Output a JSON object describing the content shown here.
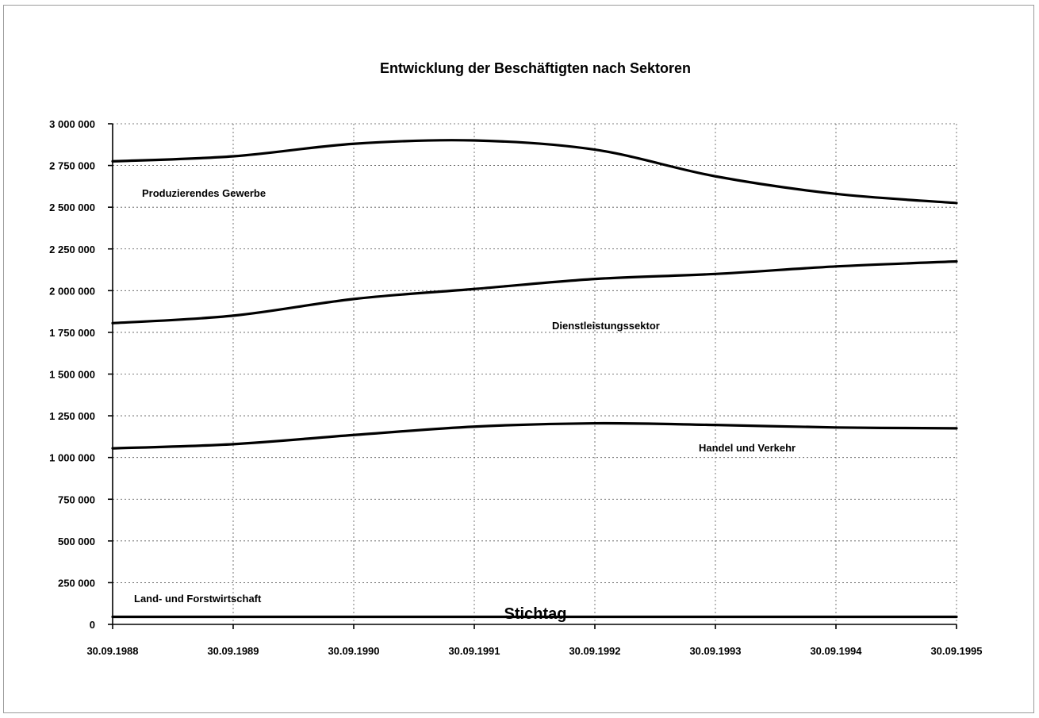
{
  "chart_data": {
    "type": "line",
    "title": "Entwicklung der Beschäftigten nach Sektoren",
    "xlabel": "Stichtag",
    "ylabel": "",
    "categories": [
      "30.09.1988",
      "30.09.1989",
      "30.09.1990",
      "30.09.1991",
      "30.09.1992",
      "30.09.1993",
      "30.09.1994",
      "30.09.1995"
    ],
    "ylim": [
      0,
      3000000
    ],
    "yticks": [
      "0",
      "250 000",
      "500 000",
      "750 000",
      "1 000 000",
      "1 250 000",
      "1 500 000",
      "1 750 000",
      "2 000 000",
      "2 250 000",
      "2 500 000",
      "2 750 000",
      "3 000 000"
    ],
    "grid": true,
    "series": [
      {
        "name": "Produzierendes Gewerbe",
        "values": [
          2775000,
          2805000,
          2880000,
          2900000,
          2845000,
          2685000,
          2580000,
          2525000
        ]
      },
      {
        "name": "Dienstleistungssektor",
        "values": [
          1805000,
          1850000,
          1950000,
          2010000,
          2070000,
          2100000,
          2145000,
          2175000
        ]
      },
      {
        "name": "Handel und Verkehr",
        "values": [
          1055000,
          1080000,
          1135000,
          1185000,
          1205000,
          1195000,
          1180000,
          1175000
        ]
      },
      {
        "name": "Land- und Forstwirtschaft",
        "values": [
          45000,
          45000,
          45000,
          45000,
          45000,
          45000,
          45000,
          45000
        ]
      }
    ],
    "line_color": "#000000"
  }
}
